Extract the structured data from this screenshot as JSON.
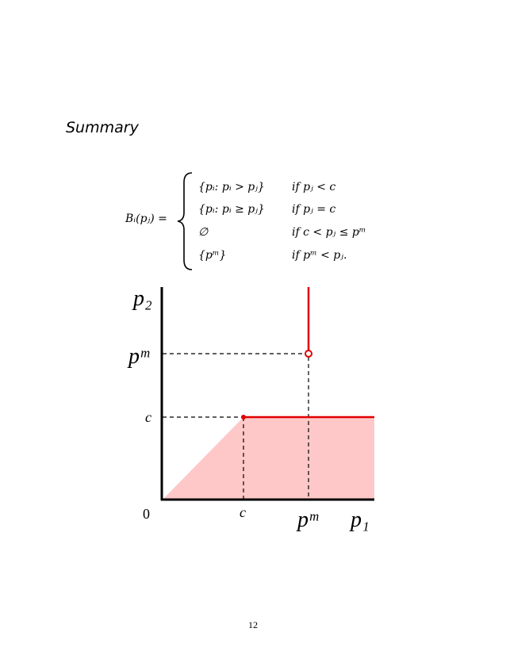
{
  "heading": "Summary",
  "equation": {
    "lhs": "Bᵢ(pⱼ) =",
    "cases": [
      {
        "value": "{pᵢ: pᵢ > pⱼ}",
        "condition": "if pⱼ < c"
      },
      {
        "value": "{pᵢ: pᵢ ≥ pⱼ}",
        "condition": "if pⱼ = c"
      },
      {
        "value": "∅",
        "condition": "if c < pⱼ ≤ pᵐ"
      },
      {
        "value": "{pᵐ}",
        "condition": "if pᵐ < pⱼ."
      }
    ]
  },
  "figure": {
    "y_axis_label": "p₂",
    "x_axis_label": "p₁",
    "y_labels": [
      "pᵐ",
      "c"
    ],
    "x_labels": [
      "0",
      "c",
      "pᵐ"
    ]
  },
  "page_number": "12"
}
